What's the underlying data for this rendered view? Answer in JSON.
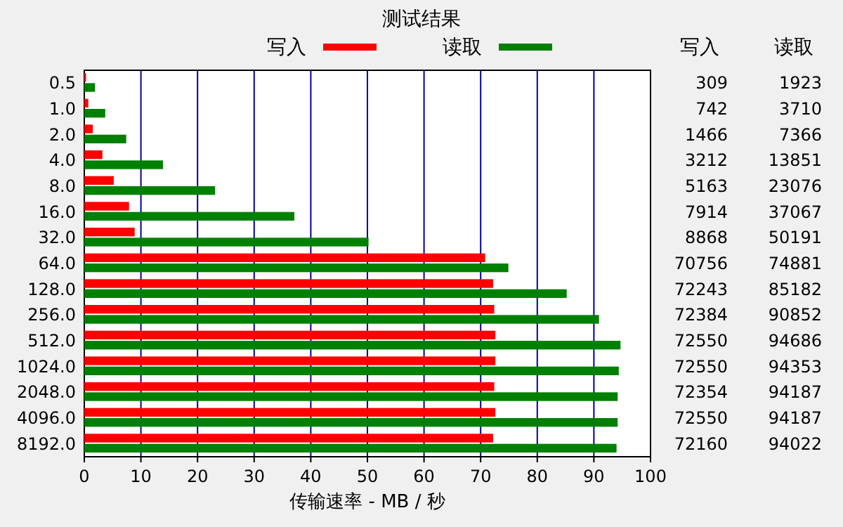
{
  "chart_data": {
    "type": "bar",
    "orientation": "horizontal",
    "title": "测试结果",
    "xlabel": "传输速率 - MB / 秒",
    "categories": [
      "0.5",
      "1.0",
      "2.0",
      "4.0",
      "8.0",
      "16.0",
      "32.0",
      "64.0",
      "128.0",
      "256.0",
      "512.0",
      "1024.0",
      "2048.0",
      "4096.0",
      "8192.0"
    ],
    "series": [
      {
        "name": "写入",
        "color": "#ff0000",
        "values": [
          0.3,
          0.7,
          1.5,
          3.2,
          5.2,
          7.9,
          8.9,
          70.8,
          72.2,
          72.4,
          72.6,
          72.6,
          72.4,
          72.6,
          72.2
        ]
      },
      {
        "name": "读取",
        "color": "#008000",
        "values": [
          1.9,
          3.7,
          7.4,
          13.9,
          23.1,
          37.1,
          50.2,
          74.9,
          85.2,
          90.9,
          94.7,
          94.4,
          94.2,
          94.2,
          94.0
        ]
      }
    ],
    "annotations": [
      "309",
      "1923",
      "742",
      "3710",
      "1466",
      "7366",
      "3212",
      "13851",
      "5163",
      "23076",
      "7914",
      "37067",
      "8868",
      "50191",
      "70756",
      "74881",
      "72243",
      "85182",
      "72384",
      "90852",
      "72550",
      "94686",
      "72550",
      "94353",
      "72354",
      "94187",
      "72550",
      "94187",
      "72160",
      "94022"
    ],
    "xlim": [
      0,
      100
    ],
    "xticks": [
      0,
      10,
      20,
      30,
      40,
      50,
      60,
      70,
      80,
      90,
      100
    ],
    "grid": "x",
    "legend": "top"
  }
}
